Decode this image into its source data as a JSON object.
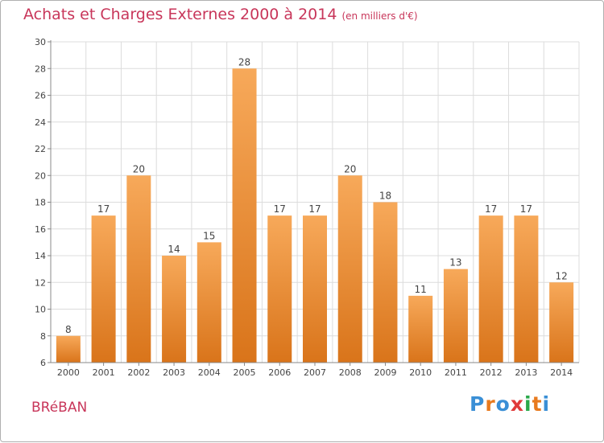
{
  "page": {
    "title": "Achats et Charges Externes 2000 à 2014",
    "subtitle": "(en milliers d'€)",
    "place": "BRéBAN",
    "logo": {
      "letters": [
        "P",
        "r",
        "o",
        "x",
        "i",
        "t",
        "i"
      ],
      "colors": [
        "#3a8fd6",
        "#e87a1e",
        "#3a8fd6",
        "#e03a3a",
        "#2aa84a",
        "#e87a1e",
        "#3a8fd6"
      ]
    }
  },
  "chart_data": {
    "type": "bar",
    "categories": [
      "2000",
      "2001",
      "2002",
      "2003",
      "2004",
      "2005",
      "2006",
      "2007",
      "2008",
      "2009",
      "2010",
      "2011",
      "2012",
      "2013",
      "2014"
    ],
    "values": [
      8,
      17,
      20,
      14,
      15,
      28,
      17,
      17,
      20,
      18,
      11,
      13,
      17,
      17,
      12
    ],
    "data_labels": [
      "8",
      "17",
      "20",
      "14",
      "15",
      "28",
      "17",
      "17",
      "20",
      "18",
      "11",
      "13",
      "17",
      "17",
      "12"
    ],
    "ylim": [
      6,
      30
    ],
    "yticks": [
      "6",
      "8",
      "10",
      "12",
      "14",
      "16",
      "18",
      "20",
      "22",
      "24",
      "26",
      "28",
      "30"
    ],
    "grid": true,
    "bar_color_top": "#f7a95a",
    "bar_color_bottom": "#d9741a",
    "grid_color": "#dcdcdc",
    "text_color": "#444444"
  }
}
